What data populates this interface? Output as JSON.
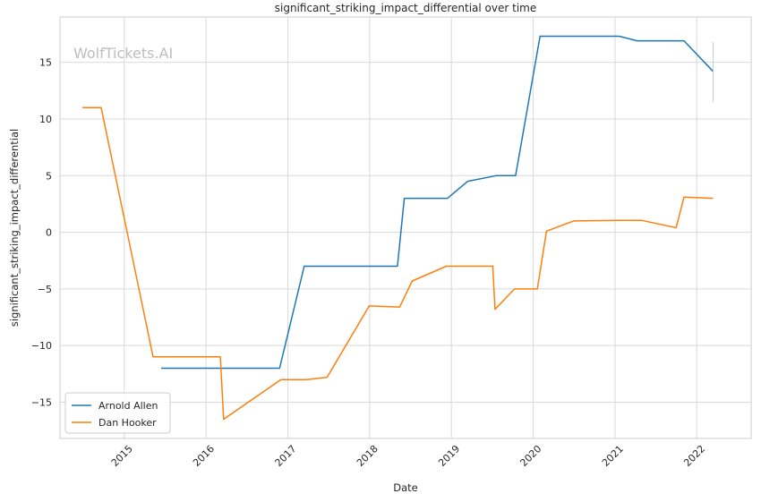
{
  "chart_data": {
    "type": "line",
    "title": "significant_striking_impact_differential over time",
    "xlabel": "Date",
    "ylabel": "significant_striking_impact_differential",
    "watermark": "WolfTickets.AI",
    "x_ticks": [
      "2015",
      "2016",
      "2017",
      "2018",
      "2019",
      "2020",
      "2021",
      "2022"
    ],
    "y_ticks": [
      -15,
      -10,
      -5,
      0,
      5,
      10,
      15
    ],
    "xlim": [
      "2014-03-20",
      "2022-09-01"
    ],
    "ylim": [
      -18.2,
      19.0
    ],
    "grid": true,
    "legend_position": "lower-left",
    "series": [
      {
        "name": "Arnold Allen",
        "color": "#1f77b4",
        "points": [
          [
            "2015-06-15",
            -12.0
          ],
          [
            "2016-11-25",
            -12.0
          ],
          [
            "2017-03-15",
            -3.0
          ],
          [
            "2018-05-05",
            -3.0
          ],
          [
            "2018-06-05",
            3.0
          ],
          [
            "2018-12-15",
            3.0
          ],
          [
            "2019-03-15",
            4.5
          ],
          [
            "2019-07-20",
            5.0
          ],
          [
            "2019-10-15",
            5.0
          ],
          [
            "2020-02-01",
            17.3
          ],
          [
            "2021-01-20",
            17.3
          ],
          [
            "2021-04-10",
            16.9
          ],
          [
            "2021-11-05",
            16.9
          ],
          [
            "2022-03-15",
            14.2
          ]
        ]
      },
      {
        "name": "Dan Hooker",
        "color": "#ff7f0e",
        "points": [
          [
            "2014-06-28",
            11.0
          ],
          [
            "2014-09-20",
            11.0
          ],
          [
            "2015-05-10",
            -11.0
          ],
          [
            "2016-03-05",
            -11.0
          ],
          [
            "2016-03-20",
            -16.5
          ],
          [
            "2016-12-01",
            -13.0
          ],
          [
            "2017-03-25",
            -13.0
          ],
          [
            "2017-06-25",
            -12.8
          ],
          [
            "2017-12-30",
            -6.5
          ],
          [
            "2018-05-15",
            -6.6
          ],
          [
            "2018-07-10",
            -4.3
          ],
          [
            "2018-12-10",
            -3.0
          ],
          [
            "2019-07-05",
            -3.0
          ],
          [
            "2019-07-15",
            -6.8
          ],
          [
            "2019-10-10",
            -5.0
          ],
          [
            "2020-01-20",
            -5.0
          ],
          [
            "2020-03-01",
            0.1
          ],
          [
            "2020-07-01",
            1.0
          ],
          [
            "2021-01-20",
            1.05
          ],
          [
            "2021-05-01",
            1.05
          ],
          [
            "2021-10-01",
            0.4
          ],
          [
            "2021-11-05",
            3.1
          ],
          [
            "2022-03-15",
            3.0
          ]
        ]
      }
    ]
  }
}
